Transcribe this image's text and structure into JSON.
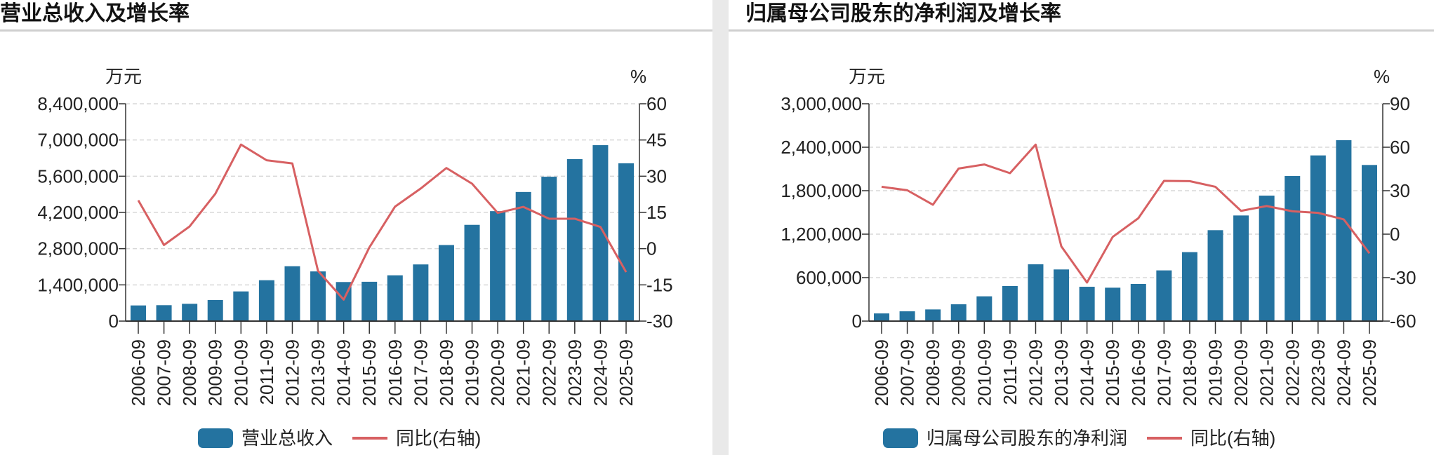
{
  "colors": {
    "bar": "#2473a0",
    "line": "#d76062",
    "axis": "#333333",
    "grid": "#d8d8d8"
  },
  "chart_data": [
    {
      "type": "bar+line",
      "title": "营业总收入及增长率",
      "ylabel_left": "万元",
      "ylabel_right": "%",
      "categories": [
        "2006-09",
        "2007-09",
        "2008-09",
        "2009-09",
        "2010-09",
        "2011-09",
        "2012-09",
        "2013-09",
        "2014-09",
        "2015-09",
        "2016-09",
        "2017-09",
        "2018-09",
        "2019-09",
        "2020-09",
        "2021-09",
        "2022-09",
        "2023-09",
        "2024-09",
        "2025-09"
      ],
      "ylim_left": [
        0,
        8400000
      ],
      "yticks_left": [
        "0",
        "1,400,000",
        "2,800,000",
        "4,200,000",
        "5,600,000",
        "7,000,000",
        "8,400,000"
      ],
      "ylim_right": [
        -30,
        60
      ],
      "yticks_right": [
        "-30",
        "-15",
        "0",
        "15",
        "30",
        "45",
        "60"
      ],
      "grid": true,
      "legend_position": "bottom",
      "series": [
        {
          "name": "营业总收入",
          "type": "bar",
          "axis": "left",
          "values": [
            605000,
            615000,
            668000,
            813000,
            1147000,
            1580000,
            2120000,
            1920000,
            1510000,
            1520000,
            1770000,
            2190000,
            2940000,
            3720000,
            4250000,
            4990000,
            5580000,
            6260000,
            6800000,
            6100000
          ]
        },
        {
          "name": "同比(右轴)",
          "type": "line",
          "axis": "right",
          "values": [
            20.0,
            1.5,
            9.2,
            22.7,
            43.1,
            36.6,
            35.3,
            -9.2,
            -21.1,
            0.5,
            17.4,
            24.9,
            33.4,
            26.9,
            14.8,
            17.3,
            12.4,
            12.4,
            9.0,
            -9.7
          ]
        }
      ]
    },
    {
      "type": "bar+line",
      "title": "归属母公司股东的净利润及增长率",
      "ylabel_left": "万元",
      "ylabel_right": "%",
      "categories": [
        "2006-09",
        "2007-09",
        "2008-09",
        "2009-09",
        "2010-09",
        "2011-09",
        "2012-09",
        "2013-09",
        "2014-09",
        "2015-09",
        "2016-09",
        "2017-09",
        "2018-09",
        "2019-09",
        "2020-09",
        "2021-09",
        "2022-09",
        "2023-09",
        "2024-09",
        "2025-09"
      ],
      "ylim_left": [
        0,
        3000000
      ],
      "yticks_left": [
        "0",
        "600,000",
        "1,200,000",
        "1,800,000",
        "2,400,000",
        "3,000,000"
      ],
      "ylim_right": [
        -60,
        90
      ],
      "yticks_right": [
        "-60",
        "-30",
        "0",
        "30",
        "60",
        "90"
      ],
      "grid": true,
      "legend_position": "bottom",
      "series": [
        {
          "name": "归属母公司股东的净利润",
          "type": "bar",
          "axis": "left",
          "values": [
            106000,
            135000,
            161000,
            232000,
            342000,
            484000,
            784000,
            713000,
            474000,
            461000,
            513000,
            700000,
            952000,
            1255000,
            1458000,
            1732000,
            2003000,
            2287000,
            2497000,
            2155000
          ]
        },
        {
          "name": "同比(右轴)",
          "type": "line",
          "axis": "right",
          "values": [
            32.7,
            30.3,
            20.3,
            45.3,
            48.1,
            42.1,
            61.8,
            -8.4,
            -33.4,
            -1.9,
            11.0,
            36.8,
            36.6,
            32.7,
            16.1,
            19.4,
            15.8,
            14.7,
            10.2,
            -13.2
          ]
        }
      ]
    }
  ]
}
